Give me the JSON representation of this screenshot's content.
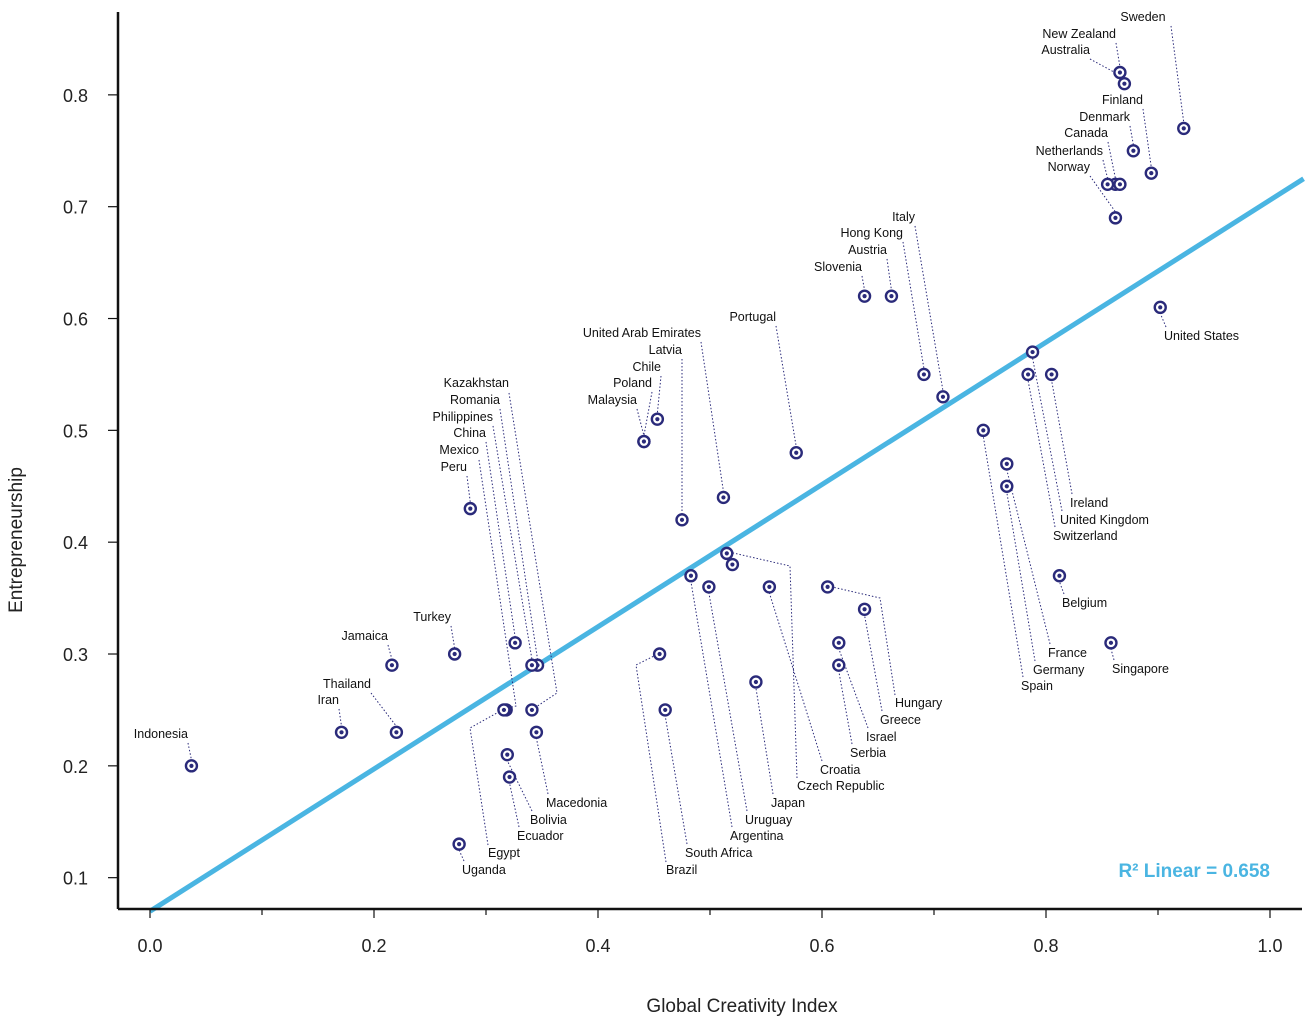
{
  "chart_data": {
    "type": "scatter",
    "xlabel": "Global Creativity Index",
    "ylabel": "Entrepreneurship",
    "xlim": [
      -0.03,
      1.03
    ],
    "ylim": [
      0.07,
      0.845
    ],
    "xticks": [
      0.0,
      0.2,
      0.4,
      0.6,
      0.8,
      1.0
    ],
    "xtick_labels": [
      "0.0",
      "0.2",
      "0.4",
      "0.6",
      "0.8",
      "1.0"
    ],
    "yticks": [
      0.1,
      0.2,
      0.3,
      0.4,
      0.5,
      0.6,
      0.7,
      0.8
    ],
    "ytick_labels": [
      "0.1",
      "0.2",
      "0.3",
      "0.4",
      "0.5",
      "0.6",
      "0.7",
      "0.8"
    ],
    "grid": false,
    "fit_line": {
      "x": [
        0.0,
        1.03
      ],
      "y": [
        0.07,
        0.725
      ],
      "color": "#4ab5e2"
    },
    "r2_label": "R² Linear = 0.658",
    "point_color": "#2a2a7a",
    "points": [
      {
        "name": "Sweden",
        "x": 0.923,
        "y": 0.77
      },
      {
        "name": "New Zealand",
        "x": 0.866,
        "y": 0.82
      },
      {
        "name": "Australia",
        "x": 0.87,
        "y": 0.81
      },
      {
        "name": "Finland",
        "x": 0.894,
        "y": 0.73
      },
      {
        "name": "Denmark",
        "x": 0.878,
        "y": 0.75
      },
      {
        "name": "Canada",
        "x": 0.862,
        "y": 0.72
      },
      {
        "name": "Netherlands",
        "x": 0.855,
        "y": 0.72
      },
      {
        "name": "Norway",
        "x": 0.862,
        "y": 0.69
      },
      {
        "name": "United States",
        "x": 0.902,
        "y": 0.61
      },
      {
        "name": "Italy",
        "x": 0.708,
        "y": 0.53
      },
      {
        "name": "Hong Kong",
        "x": 0.691,
        "y": 0.55
      },
      {
        "name": "Austria",
        "x": 0.662,
        "y": 0.62
      },
      {
        "name": "Slovenia",
        "x": 0.638,
        "y": 0.62
      },
      {
        "name": "Portugal",
        "x": 0.577,
        "y": 0.48
      },
      {
        "name": "United Arab Emirates",
        "x": 0.512,
        "y": 0.44
      },
      {
        "name": "Latvia",
        "x": 0.475,
        "y": 0.42
      },
      {
        "name": "Chile",
        "x": 0.453,
        "y": 0.51
      },
      {
        "name": "Poland",
        "x": 0.441,
        "y": 0.49
      },
      {
        "name": "Malaysia",
        "x": 0.441,
        "y": 0.49
      },
      {
        "name": "Kazakhstan",
        "x": 0.341,
        "y": 0.25
      },
      {
        "name": "Romania",
        "x": 0.346,
        "y": 0.29
      },
      {
        "name": "Philippines",
        "x": 0.341,
        "y": 0.29
      },
      {
        "name": "China",
        "x": 0.326,
        "y": 0.31
      },
      {
        "name": "Mexico",
        "x": 0.318,
        "y": 0.25
      },
      {
        "name": "Peru",
        "x": 0.286,
        "y": 0.43
      },
      {
        "name": "Turkey",
        "x": 0.272,
        "y": 0.3
      },
      {
        "name": "Jamaica",
        "x": 0.216,
        "y": 0.29
      },
      {
        "name": "Thailand",
        "x": 0.22,
        "y": 0.23
      },
      {
        "name": "Iran",
        "x": 0.171,
        "y": 0.23
      },
      {
        "name": "Indonesia",
        "x": 0.037,
        "y": 0.2
      },
      {
        "name": "Macedonia",
        "x": 0.345,
        "y": 0.23
      },
      {
        "name": "Bolivia",
        "x": 0.319,
        "y": 0.21
      },
      {
        "name": "Ecuador",
        "x": 0.321,
        "y": 0.19
      },
      {
        "name": "Egypt",
        "x": 0.316,
        "y": 0.25
      },
      {
        "name": "Uganda",
        "x": 0.276,
        "y": 0.13
      },
      {
        "name": "Brazil",
        "x": 0.455,
        "y": 0.3
      },
      {
        "name": "South Africa",
        "x": 0.46,
        "y": 0.25
      },
      {
        "name": "Argentina",
        "x": 0.483,
        "y": 0.37
      },
      {
        "name": "Uruguay",
        "x": 0.499,
        "y": 0.36
      },
      {
        "name": "Japan",
        "x": 0.541,
        "y": 0.275
      },
      {
        "name": "Czech Republic",
        "x": 0.515,
        "y": 0.39
      },
      {
        "name": "Croatia",
        "x": 0.553,
        "y": 0.36
      },
      {
        "name": "Serbia",
        "x": 0.615,
        "y": 0.29
      },
      {
        "name": "Israel",
        "x": 0.615,
        "y": 0.31
      },
      {
        "name": "Greece",
        "x": 0.638,
        "y": 0.34
      },
      {
        "name": "Hungary",
        "x": 0.605,
        "y": 0.36
      },
      {
        "name": "Ireland",
        "x": 0.805,
        "y": 0.55
      },
      {
        "name": "United Kingdom",
        "x": 0.788,
        "y": 0.57
      },
      {
        "name": "Switzerland",
        "x": 0.784,
        "y": 0.55
      },
      {
        "name": "Belgium",
        "x": 0.812,
        "y": 0.37
      },
      {
        "name": "France",
        "x": 0.765,
        "y": 0.47
      },
      {
        "name": "Germany",
        "x": 0.765,
        "y": 0.45
      },
      {
        "name": "Spain",
        "x": 0.744,
        "y": 0.5
      },
      {
        "name": "Singapore",
        "x": 0.858,
        "y": 0.31
      },
      {
        "name": "",
        "x": 0.52,
        "y": 0.38
      },
      {
        "name": "",
        "x": 0.866,
        "y": 0.72
      }
    ]
  }
}
